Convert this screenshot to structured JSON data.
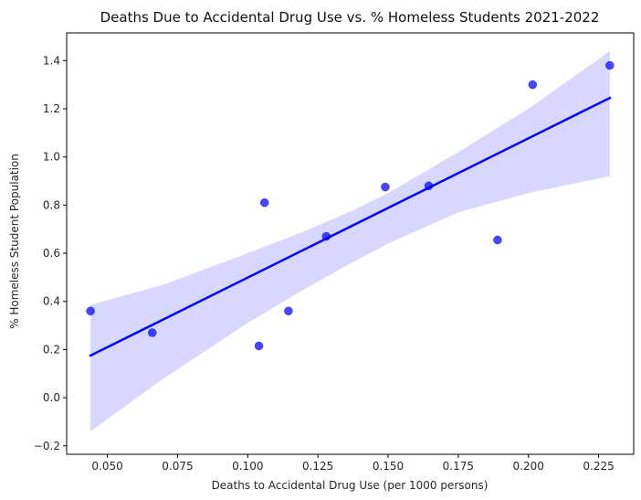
{
  "chart_data": {
    "type": "scatter",
    "title": "Deaths Due to Accidental Drug Use vs. % Homeless Students 2021-2022",
    "xlabel": "Deaths to Accidental Drug Use (per 1000 persons)",
    "ylabel": "% Homeless Student Population",
    "xlim": [
      0.0355,
      0.2375
    ],
    "ylim": [
      -0.235,
      1.515
    ],
    "xticks": [
      0.05,
      0.075,
      0.1,
      0.125,
      0.15,
      0.175,
      0.2,
      0.225
    ],
    "xtick_labels": [
      "0.050",
      "0.075",
      "0.100",
      "0.125",
      "0.150",
      "0.175",
      "0.200",
      "0.225"
    ],
    "yticks": [
      -0.2,
      0.0,
      0.2,
      0.4,
      0.6,
      0.8,
      1.0,
      1.2,
      1.4
    ],
    "ytick_labels": [
      "−0.2",
      "0.0",
      "0.2",
      "0.4",
      "0.6",
      "0.8",
      "1.0",
      "1.2",
      "1.4"
    ],
    "grid": false,
    "points": [
      {
        "x": 0.044,
        "y": 0.36
      },
      {
        "x": 0.066,
        "y": 0.27
      },
      {
        "x": 0.104,
        "y": 0.215
      },
      {
        "x": 0.106,
        "y": 0.81
      },
      {
        "x": 0.1145,
        "y": 0.36
      },
      {
        "x": 0.128,
        "y": 0.67
      },
      {
        "x": 0.149,
        "y": 0.875
      },
      {
        "x": 0.1645,
        "y": 0.88
      },
      {
        "x": 0.189,
        "y": 0.655
      },
      {
        "x": 0.2015,
        "y": 1.3
      },
      {
        "x": 0.229,
        "y": 1.38
      }
    ],
    "regression_line": {
      "x": [
        0.044,
        0.229
      ],
      "y": [
        0.175,
        1.245
      ]
    },
    "confidence_band": {
      "x": [
        0.044,
        0.07,
        0.1,
        0.12,
        0.137,
        0.15,
        0.175,
        0.2,
        0.229
      ],
      "upper": [
        0.385,
        0.47,
        0.6,
        0.69,
        0.775,
        0.85,
        1.02,
        1.2,
        1.44
      ],
      "lower": [
        -0.14,
        0.08,
        0.31,
        0.45,
        0.56,
        0.64,
        0.77,
        0.85,
        0.92
      ]
    },
    "colors": {
      "point": "#0000ff",
      "line": "#0000ff",
      "band": "#d8d8ff",
      "axis": "#000000",
      "text": "#262626"
    }
  }
}
